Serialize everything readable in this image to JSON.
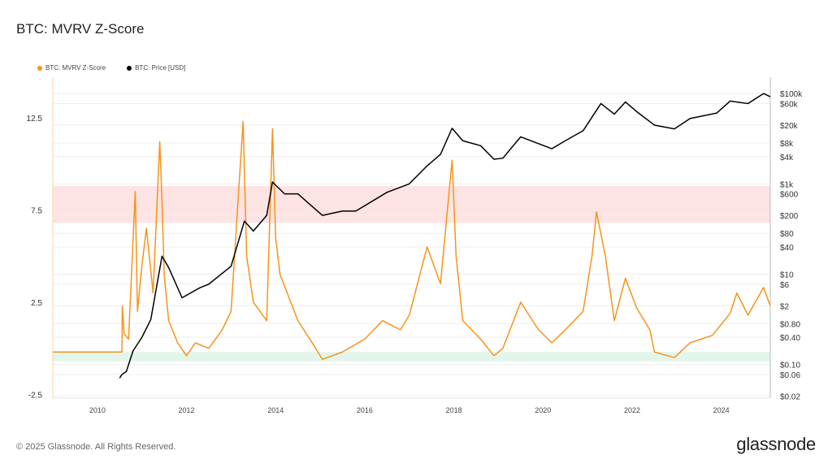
{
  "title": "BTC: MVRV Z-Score",
  "footer": "© 2025 Glassnode. All Rights Reserved.",
  "logo": "glassnode",
  "chart_data": {
    "type": "line",
    "title": "BTC: MVRV Z-Score",
    "legend": [
      {
        "name": "BTC: MVRV Z-Score",
        "color": "#f7931a"
      },
      {
        "name": "BTC: Price [USD]",
        "color": "#000000"
      }
    ],
    "legend_position": "top-left",
    "xlim": [
      2009.0,
      2025.1
    ],
    "x_ticks": [
      "2010",
      "2012",
      "2014",
      "2016",
      "2018",
      "2020",
      "2022",
      "2024"
    ],
    "ylim_left": [
      -2.7,
      14.7
    ],
    "left_ticks": [
      12.5,
      7.5,
      2.5,
      -2.5
    ],
    "right_scale": "log",
    "ylim_right": [
      0.018,
      230000
    ],
    "right_ticks": [
      {
        "v": 100000,
        "l": "$100k"
      },
      {
        "v": 60000,
        "l": "$60k"
      },
      {
        "v": 20000,
        "l": "$20k"
      },
      {
        "v": 8000,
        "l": "$8k"
      },
      {
        "v": 4000,
        "l": "$4k"
      },
      {
        "v": 1000,
        "l": "$1k"
      },
      {
        "v": 600,
        "l": "$600"
      },
      {
        "v": 200,
        "l": "$200"
      },
      {
        "v": 80,
        "l": "$80"
      },
      {
        "v": 40,
        "l": "$40"
      },
      {
        "v": 10,
        "l": "$10"
      },
      {
        "v": 6,
        "l": "$6"
      },
      {
        "v": 2,
        "l": "$2"
      },
      {
        "v": 0.8,
        "l": "$0.80"
      },
      {
        "v": 0.4,
        "l": "$0.40"
      },
      {
        "v": 0.1,
        "l": "$0.10"
      },
      {
        "v": 0.06,
        "l": "$0.06"
      },
      {
        "v": 0.02,
        "l": "$0.02"
      }
    ],
    "bands": [
      {
        "from": 6.8,
        "to": 8.8,
        "color": "#fde3e3"
      },
      {
        "from": -0.7,
        "to": -0.2,
        "color": "#e3f5ea"
      }
    ],
    "series": [
      {
        "name": "BTC: MVRV Z-Score",
        "axis": "left",
        "color": "#f7931a",
        "x": [
          2009.0,
          2010.55,
          2010.56,
          2010.6,
          2010.7,
          2010.85,
          2010.9,
          2011.0,
          2011.1,
          2011.25,
          2011.4,
          2011.45,
          2011.5,
          2011.6,
          2011.8,
          2012.0,
          2012.2,
          2012.5,
          2012.8,
          2013.0,
          2013.27,
          2013.35,
          2013.5,
          2013.8,
          2013.93,
          2014.0,
          2014.1,
          2014.5,
          2014.9,
          2015.05,
          2015.5,
          2016.0,
          2016.4,
          2016.8,
          2017.0,
          2017.4,
          2017.7,
          2017.96,
          2018.05,
          2018.2,
          2018.6,
          2018.9,
          2019.1,
          2019.5,
          2019.9,
          2020.2,
          2020.5,
          2020.9,
          2021.1,
          2021.2,
          2021.4,
          2021.6,
          2021.85,
          2022.1,
          2022.4,
          2022.5,
          2022.95,
          2023.3,
          2023.8,
          2024.2,
          2024.35,
          2024.6,
          2024.95,
          2025.1
        ],
        "y": [
          -0.2,
          -0.2,
          2.3,
          0.8,
          0.5,
          8.5,
          2,
          4.5,
          6.5,
          3,
          11.2,
          8,
          4,
          1.5,
          0.3,
          -0.4,
          0.3,
          0,
          1,
          2,
          12.3,
          5,
          2.5,
          1.5,
          11.9,
          6,
          4,
          1.5,
          0,
          -0.6,
          -0.2,
          0.5,
          1.5,
          1,
          1.8,
          5.5,
          3.5,
          10.2,
          5,
          1.5,
          0.5,
          -0.4,
          0,
          2.5,
          1,
          0.3,
          1,
          2,
          5,
          7.4,
          5,
          1.5,
          3.8,
          2.2,
          1,
          -0.2,
          -0.5,
          0.3,
          0.7,
          1.9,
          3,
          1.8,
          3.3,
          2.3
        ]
      },
      {
        "name": "BTC: Price [USD]",
        "axis": "right",
        "color": "#000000",
        "x": [
          2010.5,
          2010.55,
          2010.65,
          2010.8,
          2011.0,
          2011.2,
          2011.45,
          2011.6,
          2011.9,
          2012.3,
          2012.5,
          2013.0,
          2013.3,
          2013.5,
          2013.8,
          2013.93,
          2014.2,
          2014.5,
          2015.05,
          2015.5,
          2015.8,
          2016.5,
          2017.0,
          2017.4,
          2017.7,
          2017.96,
          2018.2,
          2018.6,
          2018.9,
          2019.1,
          2019.5,
          2020.2,
          2020.5,
          2020.9,
          2021.3,
          2021.6,
          2021.85,
          2022.1,
          2022.5,
          2022.95,
          2023.3,
          2023.9,
          2024.2,
          2024.6,
          2024.95,
          2025.1
        ],
        "y": [
          0.05,
          0.06,
          0.07,
          0.2,
          0.4,
          1,
          25,
          14,
          3,
          5,
          6,
          15,
          150,
          90,
          200,
          1100,
          600,
          600,
          200,
          250,
          250,
          650,
          1000,
          2500,
          4500,
          17000,
          9000,
          7000,
          3500,
          3700,
          11000,
          6000,
          9000,
          15000,
          60000,
          35000,
          65000,
          40000,
          20000,
          16500,
          28000,
          37000,
          68000,
          60000,
          100000,
          85000
        ]
      }
    ]
  }
}
